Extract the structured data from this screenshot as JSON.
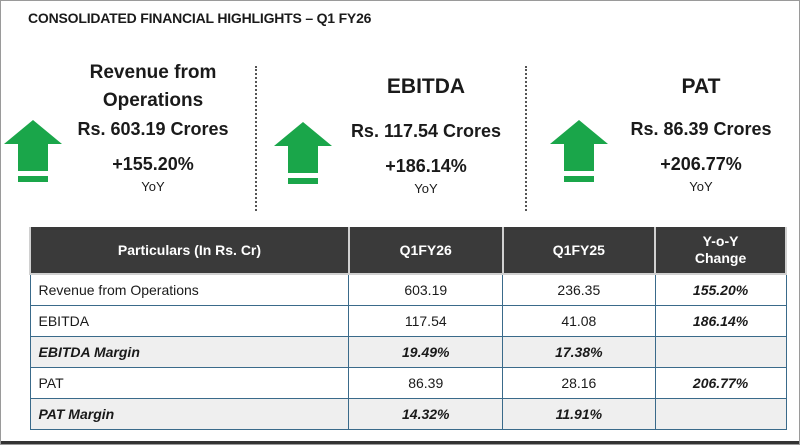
{
  "title": "CONSOLIDATED FINANCIAL HIGHLIGHTS – Q1 FY26",
  "colors": {
    "arrow": "#1aa64a",
    "header_bg": "#3a3a3a",
    "border": "#3a6a8a"
  },
  "kpis": [
    {
      "name": "Revenue from Operations",
      "name_l1": "Revenue from",
      "name_l2": "Operations",
      "amount": "Rs. 603.19 Crores",
      "growth": "+155.20%",
      "period": "YoY",
      "icon": "arrow-up-icon"
    },
    {
      "name": "EBITDA",
      "amount": "Rs. 117.54 Crores",
      "growth": "+186.14%",
      "period": "YoY",
      "icon": "arrow-up-icon"
    },
    {
      "name": "PAT",
      "amount": "Rs. 86.39 Crores",
      "growth": "+206.77%",
      "period": "YoY",
      "icon": "arrow-up-icon"
    }
  ],
  "table": {
    "headers": [
      "Particulars (In Rs. Cr)",
      "Q1FY26",
      "Q1FY25",
      "Y-o-Y Change"
    ],
    "rows": [
      [
        "Revenue from Operations",
        "603.19",
        "236.35",
        "155.20%"
      ],
      [
        "EBITDA",
        "117.54",
        "41.08",
        "186.14%"
      ],
      [
        "EBITDA Margin",
        "19.49%",
        "17.38%",
        ""
      ],
      [
        "PAT",
        "86.39",
        "28.16",
        "206.77%"
      ],
      [
        "PAT Margin",
        "14.32%",
        "11.91%",
        ""
      ]
    ]
  }
}
